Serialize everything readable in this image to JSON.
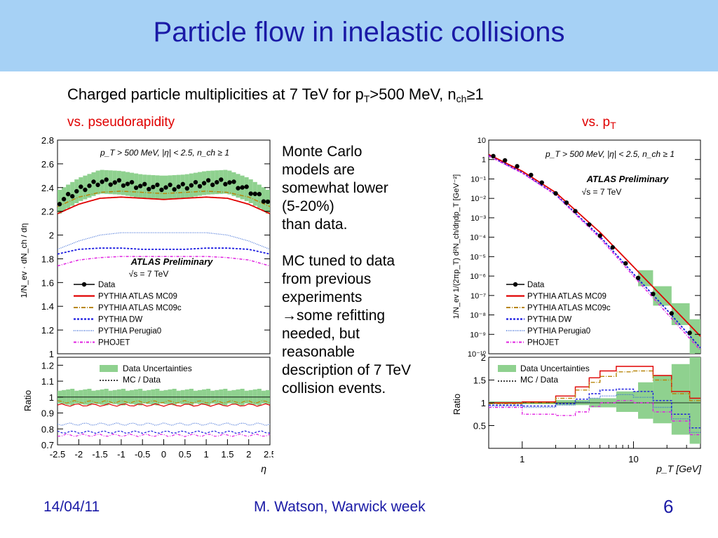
{
  "slide": {
    "title": "Particle flow in inelastic collisions",
    "subtitle_main": "Charged particle multiplicities at 7 TeV for p",
    "subtitle_sub1": "T",
    "subtitle_mid": ">500 MeV, n",
    "subtitle_sub2": "ch",
    "subtitle_end": "≥1",
    "left_heading": "vs.  pseudorapidity",
    "right_heading": "vs. p",
    "right_heading_sub": "T",
    "body_lines": [
      "Monte Carlo",
      "models are",
      "somewhat lower",
      "(5-20%)",
      "than data.",
      "",
      "MC tuned to data",
      "from previous",
      "experiments",
      "→some refitting",
      "needed, but",
      "reasonable",
      "description of 7 TeV",
      "collision events."
    ],
    "footer_date": "14/04/11",
    "footer_author": "M. Watson, Warwick week",
    "footer_page": "6"
  },
  "colors": {
    "title_bar": "#a6d1f5",
    "title_text": "#1a1aa6",
    "heading_red": "#e00000",
    "band_green": "#8fd18f"
  },
  "chart_data": [
    {
      "type": "line",
      "xlabel": "η",
      "ylabel": "1/N_ev · dN_ch / dη",
      "xlim": [
        -2.5,
        2.5
      ],
      "ylim": [
        1,
        2.8
      ],
      "y_ticks": [
        "1",
        "1.2",
        "1.4",
        "1.6",
        "1.8",
        "2",
        "2.2",
        "2.4",
        "2.6",
        "2.8"
      ],
      "header": "p_T > 500 MeV, |η| < 2.5, n_ch ≥ 1",
      "watermark": "ATLAS Preliminary",
      "energy_label": "√s = 7 TeV",
      "legend": [
        "Data",
        "PYTHIA ATLAS MC09",
        "PYTHIA ATLAS MC09c",
        "PYTHIA DW",
        "PYTHIA Perugia0",
        "PHOJET"
      ],
      "series": [
        {
          "name": "Data",
          "x": [
            -2.5,
            -2.0,
            -1.5,
            -1.0,
            -0.5,
            0.0,
            0.5,
            1.0,
            1.5,
            2.0,
            2.5
          ],
          "y": [
            2.27,
            2.38,
            2.45,
            2.44,
            2.41,
            2.4,
            2.41,
            2.44,
            2.45,
            2.38,
            2.27
          ]
        },
        {
          "name": "PYTHIA ATLAS MC09",
          "x": [
            -2.5,
            -2.0,
            -1.5,
            -1.0,
            -0.5,
            0.0,
            0.5,
            1.0,
            1.5,
            2.0,
            2.5
          ],
          "y": [
            2.18,
            2.26,
            2.31,
            2.32,
            2.31,
            2.3,
            2.31,
            2.32,
            2.31,
            2.26,
            2.18
          ]
        },
        {
          "name": "PYTHIA ATLAS MC09c",
          "x": [
            -2.5,
            -2.0,
            -1.5,
            -1.0,
            -0.5,
            0.0,
            0.5,
            1.0,
            1.5,
            2.0,
            2.5
          ],
          "y": [
            2.24,
            2.32,
            2.36,
            2.37,
            2.36,
            2.35,
            2.36,
            2.37,
            2.36,
            2.32,
            2.24
          ]
        },
        {
          "name": "PYTHIA DW",
          "x": [
            -2.5,
            -2.0,
            -1.5,
            -1.0,
            -0.5,
            0.0,
            0.5,
            1.0,
            1.5,
            2.0,
            2.5
          ],
          "y": [
            1.84,
            1.88,
            1.89,
            1.89,
            1.88,
            1.88,
            1.88,
            1.89,
            1.89,
            1.88,
            1.84
          ]
        },
        {
          "name": "PYTHIA Perugia0",
          "x": [
            -2.5,
            -2.0,
            -1.5,
            -1.0,
            -0.5,
            0.0,
            0.5,
            1.0,
            1.5,
            2.0,
            2.5
          ],
          "y": [
            1.88,
            1.95,
            2.0,
            2.02,
            2.02,
            2.02,
            2.02,
            2.02,
            2.0,
            1.95,
            1.88
          ]
        },
        {
          "name": "PHOJET",
          "x": [
            -2.5,
            -2.0,
            -1.5,
            -1.0,
            -0.5,
            0.0,
            0.5,
            1.0,
            1.5,
            2.0,
            2.5
          ],
          "y": [
            1.74,
            1.79,
            1.81,
            1.82,
            1.82,
            1.82,
            1.82,
            1.82,
            1.81,
            1.79,
            1.74
          ]
        }
      ],
      "ratio_panel": {
        "ylabel": "Ratio",
        "ylim": [
          0.7,
          1.25
        ],
        "y_ticks": [
          "0.7",
          "0.8",
          "0.9",
          "1",
          "1.1",
          "1.2"
        ],
        "x_ticks": [
          "-2.5",
          "-2",
          "-1.5",
          "-1",
          "-0.5",
          "0",
          "0.5",
          "1",
          "1.5",
          "2",
          "2.5"
        ],
        "legend": [
          "Data Uncertainties",
          "MC / Data"
        ],
        "series": [
          {
            "name": "PYTHIA ATLAS MC09",
            "y": 0.95
          },
          {
            "name": "PYTHIA ATLAS MC09c",
            "y": 0.97
          },
          {
            "name": "PYTHIA DW",
            "y": 0.78
          },
          {
            "name": "PYTHIA Perugia0",
            "y": 0.83
          },
          {
            "name": "PHOJET",
            "y": 0.76
          }
        ],
        "band": [
          0.96,
          1.04
        ]
      }
    },
    {
      "type": "line",
      "xlabel": "p_T [GeV]",
      "ylabel": "1/N_ev 1/(2πp_T) d²N_ch/dηdp_T [GeV⁻²]",
      "x_scale": "log",
      "y_scale": "log",
      "xlim": [
        0.5,
        40
      ],
      "ylim": [
        1e-10,
        10
      ],
      "y_ticks": [
        "10",
        "1",
        "10⁻¹",
        "10⁻²",
        "10⁻³",
        "10⁻⁴",
        "10⁻⁵",
        "10⁻⁶",
        "10⁻⁷",
        "10⁻⁸",
        "10⁻⁹",
        "10⁻¹⁰"
      ],
      "x_ticks": [
        "1",
        "10"
      ],
      "header": "p_T > 500 MeV, |η| < 2.5, n_ch ≥ 1",
      "watermark": "ATLAS Preliminary",
      "energy_label": "√s = 7 TeV",
      "legend": [
        "Data",
        "PYTHIA ATLAS MC09",
        "PYTHIA ATLAS MC09c",
        "PYTHIA DW",
        "PYTHIA Perugia0",
        "PHOJET"
      ],
      "series": [
        {
          "name": "Data",
          "x": [
            0.55,
            0.7,
            0.9,
            1.2,
            1.5,
            2.0,
            2.5,
            3.0,
            4.0,
            5.0,
            6.5,
            8.5,
            11,
            15,
            22,
            32
          ],
          "y": [
            1.5,
            0.9,
            0.45,
            0.16,
            0.065,
            0.018,
            0.006,
            0.0022,
            0.00045,
            0.00012,
            3e-05,
            4.5e-06,
            8e-07,
            1.2e-07,
            1.2e-08,
            1.2e-09
          ]
        },
        {
          "name": "PYTHIA ATLAS MC09",
          "x": [
            0.5,
            1,
            2,
            5,
            10,
            20,
            40
          ],
          "y": [
            1.8,
            0.25,
            0.02,
            0.00018,
            3e-06,
            5e-08,
            8e-10
          ]
        },
        {
          "name": "PYTHIA DW",
          "x": [
            0.5,
            1,
            2,
            5,
            10,
            20,
            40
          ],
          "y": [
            1.6,
            0.21,
            0.016,
            0.00011,
            1.3e-06,
            1.8e-08,
            2e-10
          ]
        },
        {
          "name": "PHOJET",
          "x": [
            0.5,
            1,
            2,
            5,
            10,
            20,
            40
          ],
          "y": [
            1.5,
            0.2,
            0.015,
            9e-05,
            1e-06,
            1.2e-08,
            1.5e-10
          ]
        }
      ],
      "ratio_panel": {
        "ylabel": "Ratio",
        "ylim": [
          0.0,
          2.0
        ],
        "y_ticks": [
          "0.5",
          "1",
          "1.5",
          "2"
        ],
        "legend": [
          "Data Uncertainties",
          "MC / Data"
        ]
      }
    }
  ]
}
